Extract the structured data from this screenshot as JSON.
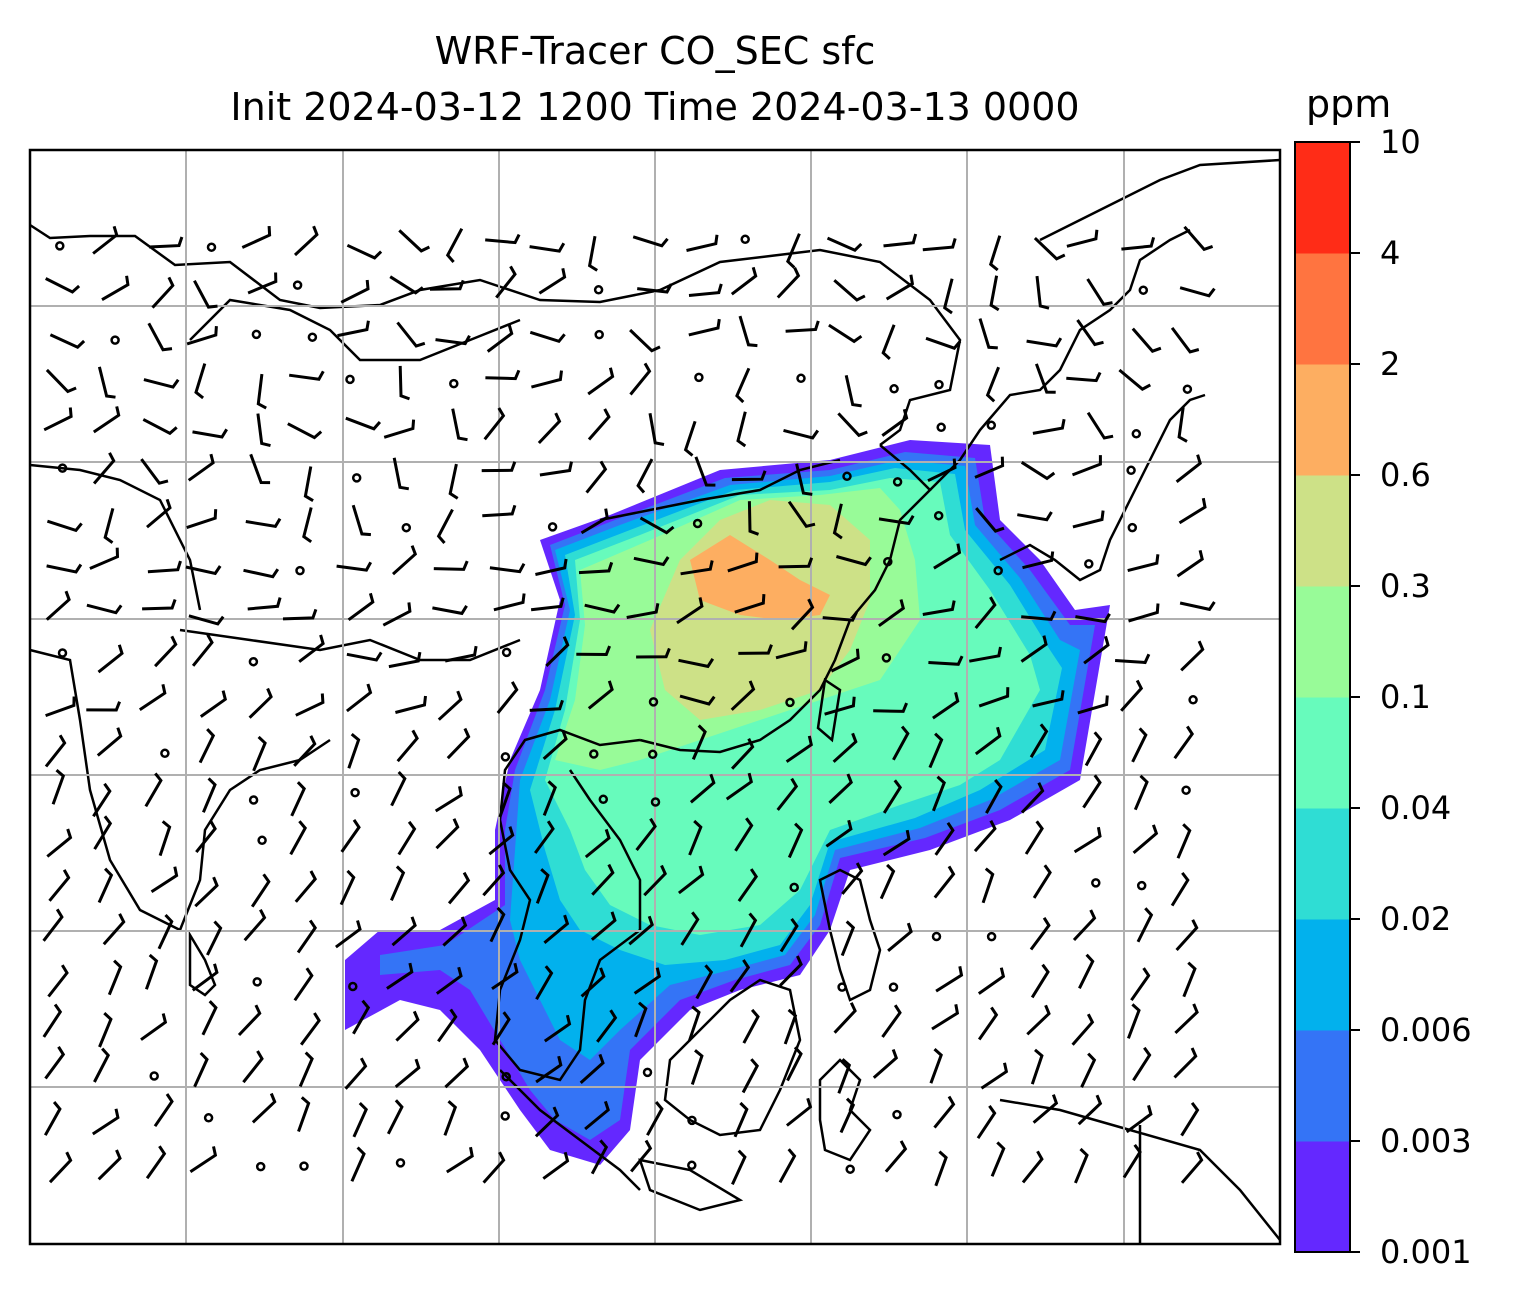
{
  "title": {
    "line1": "WRF-Tracer CO_SEC sfc",
    "line2": "Init 2024-03-12 1200 Time 2024-03-13 0000"
  },
  "colorbar": {
    "unit": "ppm",
    "levels": [
      "0.001",
      "0.003",
      "0.006",
      "0.02",
      "0.04",
      "0.1",
      "0.3",
      "0.6",
      "2",
      "4",
      "10"
    ],
    "colors": [
      "#6428ff",
      "#3474f6",
      "#02b1ed",
      "#2fddd4",
      "#67fbbc",
      "#98fb98",
      "#cde187",
      "#fdae61",
      "#ff7440",
      "#ff2c17"
    ]
  },
  "map": {
    "field": "CO_SEC sfc",
    "land_color": "#ffffff",
    "coastline_color": "#000000",
    "grid_color": "#b0b0b0",
    "barb_color": "#000000"
  }
}
